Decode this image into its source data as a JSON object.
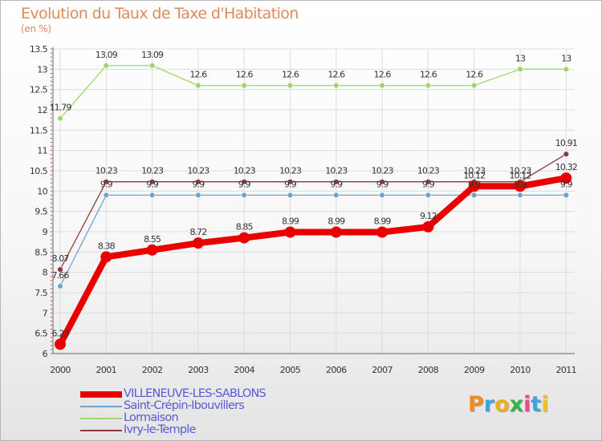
{
  "title": "Evolution du Taux de Taxe d'Habitation",
  "subtitle": "(en %)",
  "chart_data": {
    "type": "line",
    "title": "Evolution du Taux de Taxe d'Habitation",
    "ylabel": "(en %)",
    "xlabel": "",
    "categories": [
      "2000",
      "2001",
      "2002",
      "2003",
      "2004",
      "2005",
      "2006",
      "2007",
      "2008",
      "2009",
      "2010",
      "2011"
    ],
    "ylim": [
      6,
      13.5
    ],
    "yticks": [
      "6",
      "6.5",
      "7",
      "7.5",
      "8",
      "8.5",
      "9",
      "9.5",
      "10",
      "10.5",
      "11",
      "11.5",
      "12",
      "12.5",
      "13",
      "13.5"
    ],
    "grid": true,
    "series": [
      {
        "name": "VILLENEUVE-LES-SABLONS",
        "color": "#e80000",
        "values": [
          6.23,
          8.38,
          8.55,
          8.72,
          8.85,
          8.99,
          8.99,
          8.99,
          9.12,
          10.12,
          10.12,
          10.32
        ],
        "labels": [
          "6.23",
          "8.38",
          "8.55",
          "8.72",
          "8.85",
          "8.99",
          "8.99",
          "8.99",
          "9.12",
          "10.12",
          "10.12",
          "10.32"
        ]
      },
      {
        "name": "Saint-Crépin-Ibouvillers",
        "color": "#6fa3d0",
        "values": [
          7.66,
          9.9,
          9.9,
          9.9,
          9.9,
          9.9,
          9.9,
          9.9,
          9.9,
          9.9,
          9.9,
          9.9
        ],
        "labels": [
          "7.66",
          "9.9",
          "9.9",
          "9.9",
          "9.9",
          "9.9",
          "9.9",
          "9.9",
          "9.9",
          "9.9",
          "9.9",
          "9.9"
        ]
      },
      {
        "name": "Lormaison",
        "color": "#9ed86a",
        "values": [
          11.79,
          13.09,
          13.09,
          12.6,
          12.6,
          12.6,
          12.6,
          12.6,
          12.6,
          12.6,
          13,
          13
        ],
        "labels": [
          "11.79",
          "13.09",
          "13.09",
          "12.6",
          "12.6",
          "12.6",
          "12.6",
          "12.6",
          "12.6",
          "12.6",
          "13",
          "13"
        ]
      },
      {
        "name": "Ivry-le-Temple",
        "color": "#8b3a3e",
        "values": [
          8.07,
          10.23,
          10.23,
          10.23,
          10.23,
          10.23,
          10.23,
          10.23,
          10.23,
          10.23,
          10.23,
          10.91
        ],
        "labels": [
          "8.07",
          "10.23",
          "10.23",
          "10.23",
          "10.23",
          "10.23",
          "10.23",
          "10.23",
          "10.23",
          "10.23",
          "10.23",
          "10.91"
        ]
      }
    ]
  },
  "legend": [
    {
      "label": "VILLENEUVE-LES-SABLONS",
      "color": "#e80000"
    },
    {
      "label": "Saint-Crépin-Ibouvillers",
      "color": "#6fa3d0"
    },
    {
      "label": "Lormaison",
      "color": "#9ed86a"
    },
    {
      "label": "Ivry-le-Temple",
      "color": "#8b3a3e"
    }
  ],
  "logo": {
    "text": "Proxiti",
    "colors": [
      "#f08a1c",
      "#3aa6e0",
      "#e8b020",
      "#36b24a",
      "#e84c8c",
      "#3aa6e0",
      "#f0c020"
    ]
  }
}
